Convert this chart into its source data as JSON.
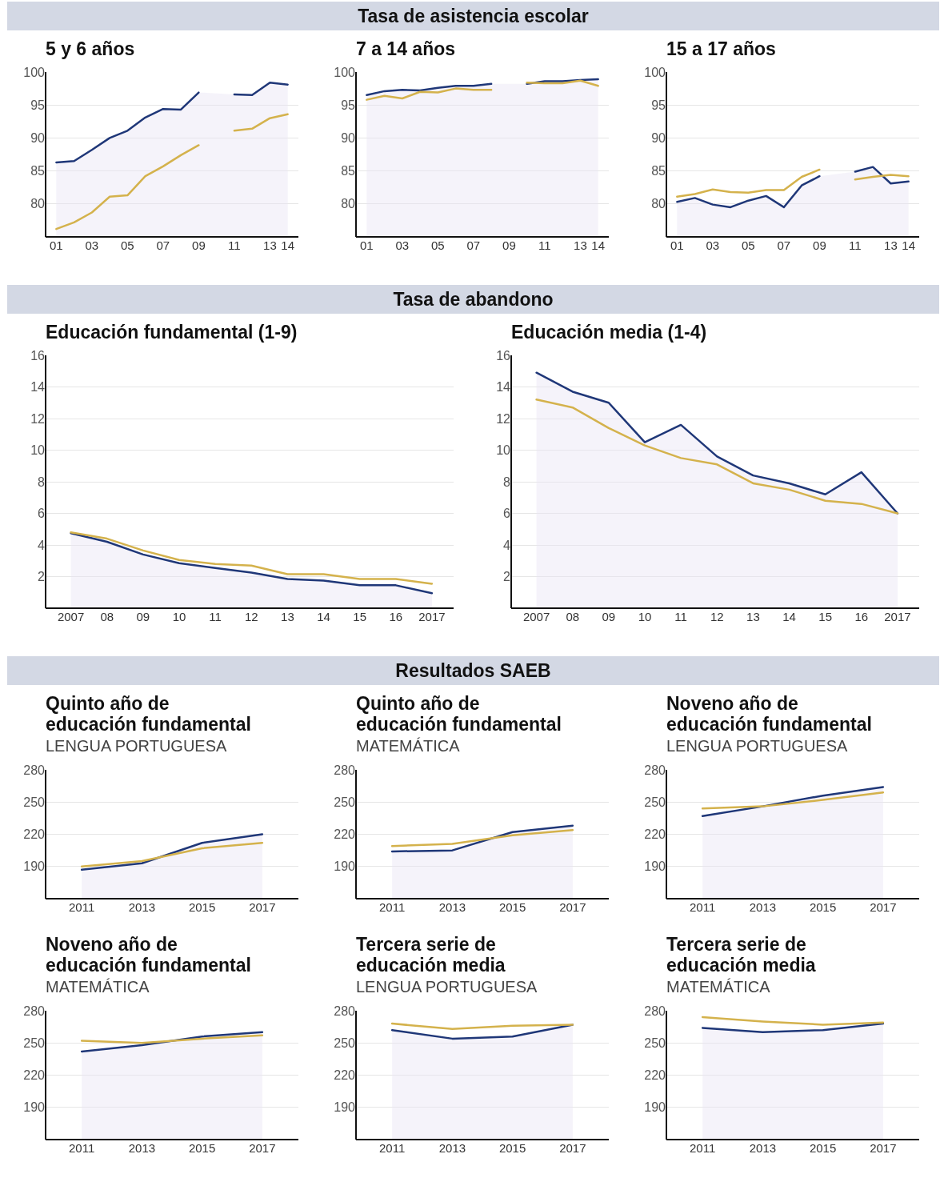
{
  "chart_data": [
    {
      "type": "other",
      "title": "Tasa de asistencia escolar"
    },
    {
      "type": "area",
      "title": "5 y 6 años",
      "x": [
        2001,
        2002,
        2003,
        2004,
        2005,
        2006,
        2007,
        2008,
        2009,
        2010,
        2011,
        2012,
        2013,
        2014
      ],
      "xlim": [
        2000.4,
        2014.6
      ],
      "xticks": [
        {
          "value": 2001,
          "label": "01"
        },
        {
          "value": 2003,
          "label": "03"
        },
        {
          "value": 2005,
          "label": "05"
        },
        {
          "value": 2007,
          "label": "07"
        },
        {
          "value": 2009,
          "label": "09"
        },
        {
          "value": 2011,
          "label": "11"
        },
        {
          "value": 2013,
          "label": "13"
        },
        {
          "value": 2014,
          "label": "14"
        }
      ],
      "ylim": [
        75,
        100
      ],
      "yticks": [
        80,
        85,
        90,
        95,
        100
      ],
      "grid": "y",
      "series": [
        {
          "type": "area",
          "color": "#1f3778",
          "values": [
            86.3,
            86.5,
            88.2,
            90.0,
            91.1,
            93.1,
            94.4,
            94.3,
            96.9,
            null,
            96.6,
            96.5,
            98.4,
            98.1
          ]
        },
        {
          "type": "line",
          "color": "#d4b24c",
          "values": [
            76.2,
            77.2,
            78.7,
            81.1,
            81.3,
            84.2,
            85.7,
            87.4,
            88.9,
            null,
            91.1,
            91.4,
            93.0,
            93.6
          ]
        }
      ]
    },
    {
      "type": "area",
      "title": "7 a 14 años",
      "x": [
        2001,
        2002,
        2003,
        2004,
        2005,
        2006,
        2007,
        2008,
        2009,
        2010,
        2011,
        2012,
        2013,
        2014
      ],
      "xlim": [
        2000.4,
        2014.6
      ],
      "xticks": [
        {
          "value": 2001,
          "label": "01"
        },
        {
          "value": 2003,
          "label": "03"
        },
        {
          "value": 2005,
          "label": "05"
        },
        {
          "value": 2007,
          "label": "07"
        },
        {
          "value": 2009,
          "label": "09"
        },
        {
          "value": 2011,
          "label": "11"
        },
        {
          "value": 2013,
          "label": "13"
        },
        {
          "value": 2014,
          "label": "14"
        }
      ],
      "ylim": [
        75,
        100
      ],
      "yticks": [
        80,
        85,
        90,
        95,
        100
      ],
      "grid": "y",
      "series": [
        {
          "type": "area",
          "color": "#1f3778",
          "values": [
            96.5,
            97.1,
            97.3,
            97.2,
            97.6,
            97.9,
            97.9,
            98.2,
            null,
            98.2,
            98.6,
            98.6,
            98.8,
            98.9
          ]
        },
        {
          "type": "line",
          "color": "#d4b24c",
          "values": [
            95.8,
            96.4,
            96.0,
            97.0,
            96.9,
            97.5,
            97.3,
            97.3,
            null,
            98.4,
            98.3,
            98.3,
            98.7,
            97.9
          ]
        }
      ]
    },
    {
      "type": "area",
      "title": "15 a 17 años",
      "x": [
        2001,
        2002,
        2003,
        2004,
        2005,
        2006,
        2007,
        2008,
        2009,
        2010,
        2011,
        2012,
        2013,
        2014
      ],
      "xlim": [
        2000.4,
        2014.6
      ],
      "xticks": [
        {
          "value": 2001,
          "label": "01"
        },
        {
          "value": 2003,
          "label": "03"
        },
        {
          "value": 2005,
          "label": "05"
        },
        {
          "value": 2007,
          "label": "07"
        },
        {
          "value": 2009,
          "label": "09"
        },
        {
          "value": 2011,
          "label": "11"
        },
        {
          "value": 2013,
          "label": "13"
        },
        {
          "value": 2014,
          "label": "14"
        }
      ],
      "ylim": [
        75,
        100
      ],
      "yticks": [
        80,
        85,
        90,
        95,
        100
      ],
      "grid": "y",
      "series": [
        {
          "type": "area",
          "color": "#1f3778",
          "values": [
            80.3,
            80.9,
            79.9,
            79.5,
            80.5,
            81.2,
            79.5,
            82.8,
            84.2,
            null,
            84.9,
            85.6,
            83.1,
            83.4
          ]
        },
        {
          "type": "line",
          "color": "#d4b24c",
          "values": [
            81.1,
            81.5,
            82.2,
            81.8,
            81.7,
            82.1,
            82.1,
            84.1,
            85.2,
            null,
            83.7,
            84.1,
            84.4,
            84.2
          ]
        }
      ]
    },
    {
      "type": "other",
      "title": "Tasa de abandono"
    },
    {
      "type": "area",
      "title": "Educación fundamental (1-9)",
      "x": [
        2007,
        2008,
        2009,
        2010,
        2011,
        2012,
        2013,
        2014,
        2015,
        2016,
        2017
      ],
      "xlim": [
        2006.3,
        2017.6
      ],
      "xticks": [
        2007,
        {
          "value": 2008,
          "label": "08"
        },
        {
          "value": 2009,
          "label": "09"
        },
        {
          "value": 2010,
          "label": "10"
        },
        {
          "value": 2011,
          "label": "11"
        },
        {
          "value": 2012,
          "label": "12"
        },
        {
          "value": 2013,
          "label": "13"
        },
        {
          "value": 2014,
          "label": "14"
        },
        {
          "value": 2015,
          "label": "15"
        },
        {
          "value": 2016,
          "label": "16"
        },
        2017
      ],
      "ylim": [
        0,
        16
      ],
      "yticks": [
        2,
        4,
        6,
        8,
        10,
        12,
        14,
        16
      ],
      "grid": "y",
      "series": [
        {
          "type": "area",
          "color": "#1f3778",
          "values": [
            4.75,
            4.2,
            3.4,
            2.85,
            2.55,
            2.25,
            1.85,
            1.75,
            1.45,
            1.45,
            0.95
          ]
        },
        {
          "type": "line",
          "color": "#d4b24c",
          "values": [
            4.8,
            4.4,
            3.65,
            3.05,
            2.8,
            2.7,
            2.15,
            2.15,
            1.85,
            1.85,
            1.55
          ]
        }
      ]
    },
    {
      "type": "area",
      "title": "Educación media (1-4)",
      "x": [
        2007,
        2008,
        2009,
        2010,
        2011,
        2012,
        2013,
        2014,
        2015,
        2016,
        2017
      ],
      "xlim": [
        2006.3,
        2017.6
      ],
      "xticks": [
        2007,
        {
          "value": 2008,
          "label": "08"
        },
        {
          "value": 2009,
          "label": "09"
        },
        {
          "value": 2010,
          "label": "10"
        },
        {
          "value": 2011,
          "label": "11"
        },
        {
          "value": 2012,
          "label": "12"
        },
        {
          "value": 2013,
          "label": "13"
        },
        {
          "value": 2014,
          "label": "14"
        },
        {
          "value": 2015,
          "label": "15"
        },
        {
          "value": 2016,
          "label": "16"
        },
        2017
      ],
      "ylim": [
        0,
        16
      ],
      "yticks": [
        2,
        4,
        6,
        8,
        10,
        12,
        14,
        16
      ],
      "grid": "y",
      "series": [
        {
          "type": "area",
          "color": "#1f3778",
          "values": [
            14.9,
            13.7,
            13.0,
            10.5,
            11.6,
            9.6,
            8.4,
            7.9,
            7.2,
            8.6,
            6.0
          ]
        },
        {
          "type": "line",
          "color": "#d4b24c",
          "values": [
            13.2,
            12.7,
            11.4,
            10.3,
            9.5,
            9.1,
            7.9,
            7.5,
            6.8,
            6.6,
            6.0
          ]
        }
      ]
    },
    {
      "type": "other",
      "title": "Resultados SAEB"
    },
    {
      "type": "area",
      "title": "Quinto año de educación fundamental",
      "subtitle": "LENGUA PORTUGUESA",
      "x": [
        2011,
        2013,
        2015,
        2017
      ],
      "xlim": [
        2009.8,
        2018.2
      ],
      "xticks": [
        2011,
        2013,
        2015,
        2017
      ],
      "ylim": [
        160,
        280
      ],
      "yticks": [
        190,
        220,
        250,
        280
      ],
      "grid": "y",
      "series": [
        {
          "type": "area",
          "color": "#1f3778",
          "values": [
            187,
            193,
            212,
            220
          ]
        },
        {
          "type": "line",
          "color": "#d4b24c",
          "values": [
            190,
            195,
            207,
            212
          ]
        }
      ]
    },
    {
      "type": "area",
      "title": "Quinto año de educación fundamental",
      "subtitle": "MATEMÁTICA",
      "x": [
        2011,
        2013,
        2015,
        2017
      ],
      "xlim": [
        2009.8,
        2018.2
      ],
      "xticks": [
        2011,
        2013,
        2015,
        2017
      ],
      "ylim": [
        160,
        280
      ],
      "yticks": [
        190,
        220,
        250,
        280
      ],
      "grid": "y",
      "series": [
        {
          "type": "area",
          "color": "#1f3778",
          "values": [
            204,
            205,
            222,
            228
          ]
        },
        {
          "type": "line",
          "color": "#d4b24c",
          "values": [
            209,
            211,
            219,
            224
          ]
        }
      ]
    },
    {
      "type": "area",
      "title": "Noveno año de educación fundamental",
      "subtitle": "LENGUA PORTUGUESA",
      "x": [
        2011,
        2013,
        2015,
        2017
      ],
      "xlim": [
        2009.8,
        2018.2
      ],
      "xticks": [
        2011,
        2013,
        2015,
        2017
      ],
      "ylim": [
        160,
        280
      ],
      "yticks": [
        190,
        220,
        250,
        280
      ],
      "grid": "y",
      "series": [
        {
          "type": "area",
          "color": "#1f3778",
          "values": [
            237,
            246,
            256,
            264
          ]
        },
        {
          "type": "line",
          "color": "#d4b24c",
          "values": [
            244,
            246,
            252,
            259
          ]
        }
      ]
    },
    {
      "type": "area",
      "title": "Noveno año de educación fundamental",
      "subtitle": "MATEMÁTICA",
      "x": [
        2011,
        2013,
        2015,
        2017
      ],
      "xlim": [
        2009.8,
        2018.2
      ],
      "xticks": [
        2011,
        2013,
        2015,
        2017
      ],
      "ylim": [
        160,
        280
      ],
      "yticks": [
        190,
        220,
        250,
        280
      ],
      "grid": "y",
      "series": [
        {
          "type": "area",
          "color": "#1f3778",
          "values": [
            242,
            248,
            256,
            260
          ]
        },
        {
          "type": "line",
          "color": "#d4b24c",
          "values": [
            252,
            250,
            254,
            257
          ]
        }
      ]
    },
    {
      "type": "area",
      "title": "Tercera serie de educación media",
      "subtitle": "LENGUA PORTUGUESA",
      "x": [
        2011,
        2013,
        2015,
        2017
      ],
      "xlim": [
        2009.8,
        2018.2
      ],
      "xticks": [
        2011,
        2013,
        2015,
        2017
      ],
      "ylim": [
        160,
        280
      ],
      "yticks": [
        190,
        220,
        250,
        280
      ],
      "grid": "y",
      "series": [
        {
          "type": "area",
          "color": "#1f3778",
          "values": [
            262,
            254,
            256,
            267
          ]
        },
        {
          "type": "line",
          "color": "#d4b24c",
          "values": [
            268,
            263,
            266,
            267
          ]
        }
      ]
    },
    {
      "type": "area",
      "title": "Tercera serie de educación media",
      "subtitle": "MATEMÁTICA",
      "x": [
        2011,
        2013,
        2015,
        2017
      ],
      "xlim": [
        2009.8,
        2018.2
      ],
      "xticks": [
        2011,
        2013,
        2015,
        2017
      ],
      "ylim": [
        160,
        280
      ],
      "yticks": [
        190,
        220,
        250,
        280
      ],
      "grid": "y",
      "series": [
        {
          "type": "area",
          "color": "#1f3778",
          "values": [
            264,
            260,
            262,
            268
          ]
        },
        {
          "type": "line",
          "color": "#d4b24c",
          "values": [
            274,
            270,
            267,
            269
          ]
        }
      ]
    }
  ]
}
